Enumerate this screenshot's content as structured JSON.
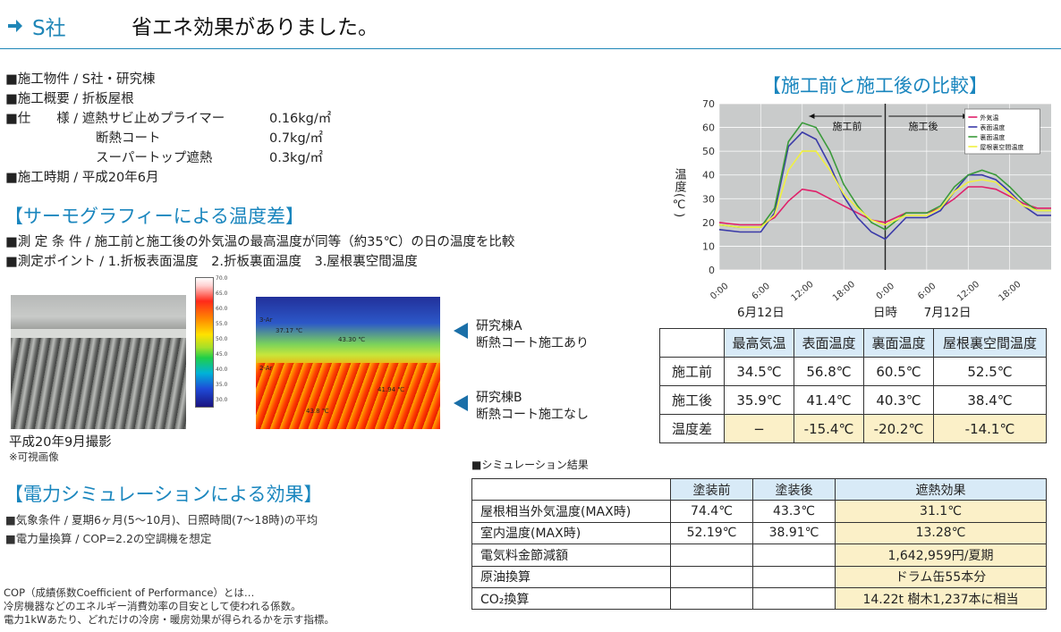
{
  "header": {
    "company": "S社",
    "headline": "省エネ効果がありました。"
  },
  "specs": [
    "■施工物件 / S社・研究棟",
    "■施工概要 / 折板屋根",
    "■仕　　様 / 遮熱サビ止めプライマー",
    "断熱コート",
    "スーパートップ遮熱",
    "■施工時期 / 平成20年6月"
  ],
  "spec_values": [
    "0.16kg/㎡",
    "0.7kg/㎡",
    "0.3kg/㎡"
  ],
  "thermo": {
    "title": "【サーモグラフィーによる温度差】",
    "cond": "■測 定 条 件 / 施工前と施工後の外気温の最高温度が同等（約35℃）の日の温度を比較",
    "points": "■測定ポイント / 1.折板表面温度　2.折板裏面温度　3.屋根裏空間温度",
    "photo_caption": "平成20年9月撮影",
    "photo_note": "※可視画像",
    "scale_ticks": [
      "70.0",
      "65.0",
      "60.0",
      "55.0",
      "50.0",
      "45.0",
      "40.0",
      "35.0",
      "30.0"
    ],
    "image_labels": [
      "3-Ar",
      "37.17 ℃",
      "43.30 ℃",
      "2-Ar",
      "41.94 ℃",
      "43.8 ℃"
    ],
    "building_a": [
      "研究棟A",
      "断熱コート施工あり"
    ],
    "building_b": [
      "研究棟B",
      "断熱コート施工なし"
    ]
  },
  "power": {
    "title": "【電力シミュレーションによる効果】",
    "lines": [
      "■気象条件 / 夏期6ヶ月(5〜10月)、日照時間(7〜18時)の平均",
      "■電力量換算 / COP=2.2の空調機を想定"
    ],
    "cop_note": [
      "COP（成績係数Coefficient of Performance）とは…",
      "冷房機器などのエネルギー消費効率の目安として使われる係数。",
      "電力1kWあたり、どれだけの冷房・暖房効果が得られるかを示す指標。"
    ]
  },
  "chart_data": {
    "type": "line",
    "title": "【施工前と施工後の比較】",
    "ylabel": "温度(℃)",
    "ylim": [
      0,
      70
    ],
    "yticks": [
      0,
      10,
      20,
      30,
      40,
      50,
      60,
      70
    ],
    "xticks": [
      "0:00",
      "6:00",
      "12:00",
      "18:00",
      "0:00",
      "6:00",
      "12:00",
      "18:00"
    ],
    "xlabels": [
      "6月12日",
      "日時",
      "7月12日"
    ],
    "annotations": [
      "施工前",
      "施工後"
    ],
    "grid": true,
    "legend_position": "top-right",
    "x": [
      0,
      3,
      6,
      8,
      10,
      12,
      14,
      16,
      18,
      20,
      22,
      24,
      27,
      30,
      32,
      34,
      36,
      38,
      40,
      42,
      44,
      46,
      48
    ],
    "series": [
      {
        "name": "外気温",
        "color": "#e0206a",
        "values": [
          20,
          19,
          19,
          22,
          29,
          34,
          33,
          30,
          27,
          24,
          21,
          20,
          24,
          24,
          26,
          30,
          35,
          35,
          34,
          31,
          28,
          26,
          26
        ]
      },
      {
        "name": "表面温度",
        "color": "#3a3aa8",
        "values": [
          17,
          16,
          16,
          24,
          52,
          58,
          55,
          44,
          31,
          22,
          16,
          13,
          22,
          22,
          25,
          33,
          40,
          40,
          38,
          33,
          27,
          23,
          23
        ]
      },
      {
        "name": "裏面温度",
        "color": "#3a9a3a",
        "values": [
          19,
          18,
          18,
          26,
          54,
          62,
          60,
          50,
          36,
          27,
          20,
          17,
          24,
          24,
          27,
          35,
          40,
          42,
          40,
          35,
          29,
          25,
          25
        ]
      },
      {
        "name": "屋根裏空間温度",
        "color": "#f0f040",
        "values": [
          19,
          18,
          18,
          23,
          42,
          50,
          50,
          42,
          32,
          26,
          21,
          19,
          23,
          23,
          26,
          33,
          37,
          38,
          37,
          32,
          27,
          25,
          25
        ]
      }
    ]
  },
  "comparison": {
    "headers": [
      "最高気温",
      "表面温度",
      "裏面温度",
      "屋根裏空間温度"
    ],
    "rows": [
      {
        "label": "施工前",
        "values": [
          "34.5℃",
          "56.8℃",
          "60.5℃",
          "52.5℃"
        ]
      },
      {
        "label": "施工後",
        "values": [
          "35.9℃",
          "41.4℃",
          "40.3℃",
          "38.4℃"
        ]
      },
      {
        "label": "温度差",
        "values": [
          "−",
          "-15.4℃",
          "-20.2℃",
          "-14.1℃"
        ]
      }
    ]
  },
  "simulation": {
    "label": "■シミュレーション結果",
    "headers": [
      "塗装前",
      "塗装後",
      "遮熱効果"
    ],
    "rows": [
      {
        "label": "屋根相当外気温度(MAX時)",
        "before": "74.4℃",
        "after": "43.3℃",
        "effect": "31.1℃"
      },
      {
        "label": "室内温度(MAX時)",
        "before": "52.19℃",
        "after": "38.91℃",
        "effect": "13.28℃"
      },
      {
        "label": "電気料金節減額",
        "before": "",
        "after": "",
        "effect": "1,642,959円/夏期"
      },
      {
        "label": "原油換算",
        "before": "",
        "after": "",
        "effect": "ドラム缶55本分"
      },
      {
        "label": "CO₂換算",
        "before": "",
        "after": "",
        "effect": "14.22t 樹木1,237本に相当"
      }
    ]
  }
}
